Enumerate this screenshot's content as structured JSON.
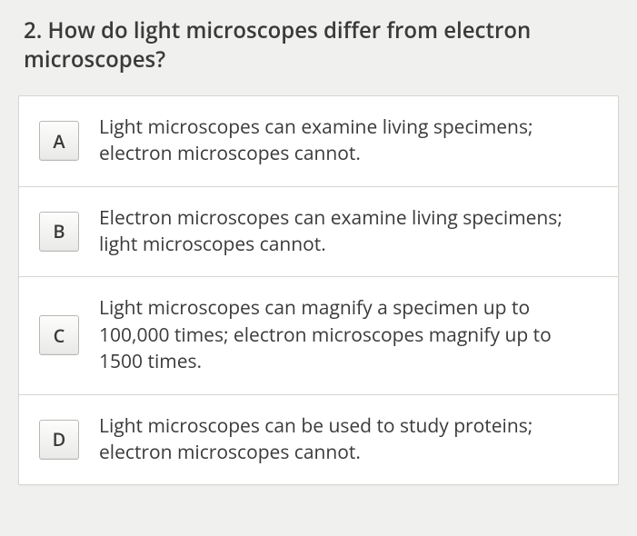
{
  "question": {
    "number": "2.",
    "text": "How do light microscopes differ from electron microscopes?"
  },
  "options": [
    {
      "letter": "A",
      "text": "Light microscopes can examine living specimens; electron microscopes cannot."
    },
    {
      "letter": "B",
      "text": "Electron microscopes can examine living specimens; light microscopes cannot."
    },
    {
      "letter": "C",
      "text": "Light microscopes can magnify a specimen up to 100,000 times; electron microscopes magnify up to 1500 times."
    },
    {
      "letter": "D",
      "text": "Light microscopes can be used to study proteins; electron microscopes cannot."
    }
  ],
  "styles": {
    "background_color": "#f0f0ef",
    "text_color": "#3a3a3a",
    "border_color": "#d6d6d4",
    "letter_border": "#b8b8b6",
    "question_fontsize": 24,
    "option_fontsize": 21
  }
}
